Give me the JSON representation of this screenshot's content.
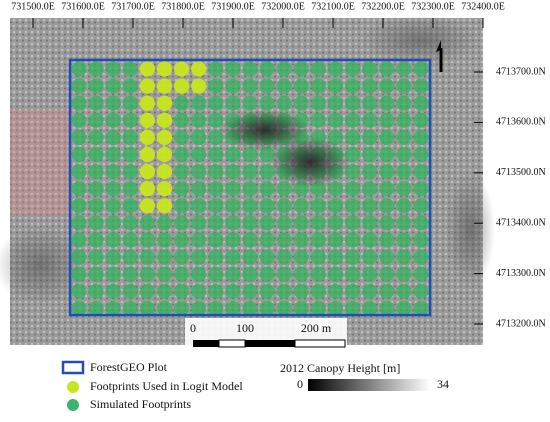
{
  "map": {
    "easting_labels": [
      "731500.0E",
      "731600.0E",
      "731700.0E",
      "731800.0E",
      "731900.0E",
      "732000.0E",
      "732100.0E",
      "732200.0E",
      "732300.0E",
      "732400.0E"
    ],
    "northing_labels": [
      "4713700.0N",
      "4713600.0N",
      "4713500.0N",
      "4713400.0N",
      "4713300.0N",
      "4713200.0N"
    ],
    "scale_bar": {
      "labels": [
        "0",
        "100",
        "200 m"
      ]
    },
    "legend": {
      "items": [
        "ForestGEO Plot",
        "Footprints Used in Logit Model",
        "Simulated Footprints"
      ]
    },
    "colorbar": {
      "title": "2012 Canopy Height [m]",
      "min": 0,
      "max": 34
    }
  }
}
